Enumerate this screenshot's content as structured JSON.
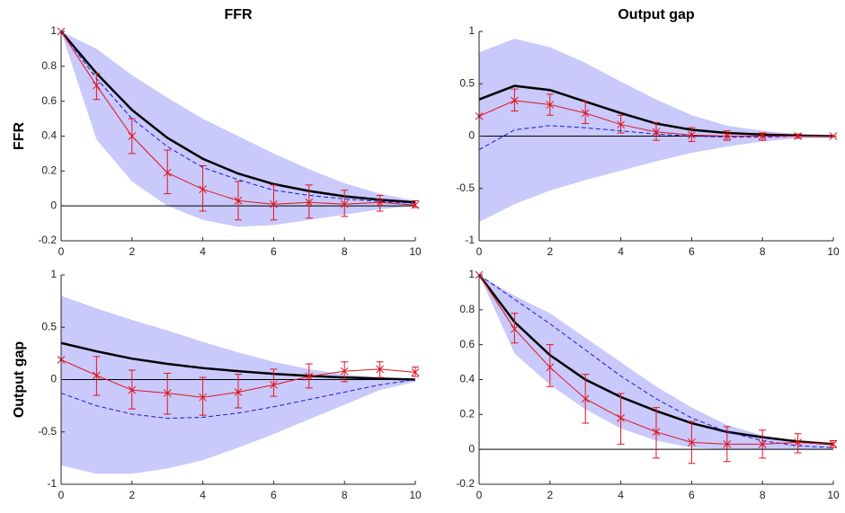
{
  "chart_data": [
    {
      "type": "line",
      "title": "FFR",
      "ylabel": "FFR",
      "x": [
        0,
        1,
        2,
        3,
        4,
        5,
        6,
        7,
        8,
        9,
        10
      ],
      "xlim": [
        0,
        10
      ],
      "xticks": [
        0,
        2,
        4,
        6,
        8,
        10
      ],
      "ylim": [
        -0.2,
        1
      ],
      "yticks": [
        -0.2,
        0,
        0.2,
        0.4,
        0.6,
        0.8,
        1
      ],
      "hline": 0,
      "band": {
        "color": "#c9c9fb",
        "upper": [
          1,
          0.9,
          0.75,
          0.62,
          0.5,
          0.4,
          0.3,
          0.21,
          0.13,
          0.07,
          0.03
        ],
        "lower": [
          1,
          0.38,
          0.14,
          0.0,
          -0.08,
          -0.12,
          -0.11,
          -0.08,
          -0.05,
          -0.02,
          0.0
        ]
      },
      "series": [
        {
          "color": "#000000",
          "width": 2.5,
          "values": [
            1,
            0.76,
            0.55,
            0.39,
            0.27,
            0.185,
            0.125,
            0.085,
            0.055,
            0.035,
            0.02
          ]
        },
        {
          "color": "#1a1ad6",
          "width": 1,
          "dash": "5,3",
          "values": [
            1,
            0.73,
            0.5,
            0.34,
            0.22,
            0.15,
            0.09,
            0.06,
            0.04,
            0.025,
            0.015
          ]
        },
        {
          "color": "#e0141e",
          "width": 1,
          "marker": "x",
          "values": [
            1,
            0.69,
            0.4,
            0.19,
            0.095,
            0.03,
            0.01,
            0.02,
            0.01,
            0.02,
            0.005
          ],
          "lower": [
            null,
            0.61,
            0.3,
            0.07,
            -0.03,
            -0.08,
            -0.08,
            -0.07,
            -0.06,
            -0.03,
            -0.01
          ],
          "upper": [
            null,
            0.76,
            0.5,
            0.32,
            0.23,
            0.14,
            0.12,
            0.12,
            0.09,
            0.06,
            0.03
          ]
        }
      ]
    },
    {
      "type": "line",
      "title": "Output gap",
      "x": [
        0,
        1,
        2,
        3,
        4,
        5,
        6,
        7,
        8,
        9,
        10
      ],
      "xlim": [
        0,
        10
      ],
      "xticks": [
        0,
        2,
        4,
        6,
        8,
        10
      ],
      "ylim": [
        -1,
        1
      ],
      "yticks": [
        -1,
        -0.5,
        0,
        0.5,
        1
      ],
      "hline": 0,
      "band": {
        "color": "#c9c9fb",
        "upper": [
          0.8,
          0.93,
          0.85,
          0.7,
          0.52,
          0.35,
          0.2,
          0.1,
          0.05,
          0.02,
          0.01
        ],
        "lower": [
          -0.82,
          -0.65,
          -0.52,
          -0.42,
          -0.33,
          -0.24,
          -0.16,
          -0.1,
          -0.05,
          -0.02,
          -0.01
        ]
      },
      "series": [
        {
          "color": "#000000",
          "width": 2.5,
          "values": [
            0.35,
            0.48,
            0.44,
            0.33,
            0.22,
            0.12,
            0.06,
            0.03,
            0.015,
            0.005,
            0.0
          ]
        },
        {
          "color": "#1a1ad6",
          "width": 1,
          "dash": "5,3",
          "values": [
            -0.13,
            0.06,
            0.1,
            0.08,
            0.05,
            0.02,
            0.0,
            -0.01,
            -0.01,
            0,
            0
          ]
        },
        {
          "color": "#e0141e",
          "width": 1,
          "marker": "x",
          "values": [
            0.19,
            0.34,
            0.3,
            0.22,
            0.11,
            0.04,
            0.01,
            0.0,
            0.0,
            0.0,
            0.0
          ],
          "lower": [
            null,
            0.24,
            0.2,
            0.12,
            0.03,
            -0.04,
            -0.05,
            -0.04,
            -0.04,
            -0.02,
            0
          ],
          "upper": [
            null,
            0.45,
            0.4,
            0.33,
            0.2,
            0.13,
            0.08,
            0.05,
            0.03,
            0.02,
            0
          ]
        }
      ]
    },
    {
      "type": "line",
      "ylabel": "Output gap",
      "x": [
        0,
        1,
        2,
        3,
        4,
        5,
        6,
        7,
        8,
        9,
        10
      ],
      "xlim": [
        0,
        10
      ],
      "xticks": [
        0,
        2,
        4,
        6,
        8,
        10
      ],
      "ylim": [
        -1,
        1
      ],
      "yticks": [
        -1,
        -0.5,
        0,
        0.5,
        1
      ],
      "hline": 0,
      "band": {
        "color": "#c9c9fb",
        "upper": [
          0.8,
          0.68,
          0.57,
          0.47,
          0.36,
          0.26,
          0.17,
          0.1,
          0.05,
          0.02,
          0.0
        ],
        "lower": [
          -0.82,
          -0.9,
          -0.9,
          -0.85,
          -0.77,
          -0.65,
          -0.52,
          -0.38,
          -0.24,
          -0.1,
          -0.02
        ]
      },
      "series": [
        {
          "color": "#000000",
          "width": 2.5,
          "values": [
            0.35,
            0.27,
            0.2,
            0.15,
            0.11,
            0.08,
            0.055,
            0.035,
            0.02,
            0.01,
            0.0
          ]
        },
        {
          "color": "#1a1ad6",
          "width": 1,
          "dash": "5,3",
          "values": [
            -0.13,
            -0.25,
            -0.33,
            -0.37,
            -0.36,
            -0.32,
            -0.26,
            -0.19,
            -0.12,
            -0.05,
            0.0
          ]
        },
        {
          "color": "#e0141e",
          "width": 1,
          "marker": "x",
          "values": [
            0.19,
            0.04,
            -0.1,
            -0.13,
            -0.17,
            -0.12,
            -0.05,
            0.03,
            0.08,
            0.1,
            0.07
          ],
          "lower": [
            null,
            -0.15,
            -0.28,
            -0.33,
            -0.34,
            -0.27,
            -0.16,
            -0.08,
            -0.02,
            0.02,
            0.03
          ],
          "upper": [
            null,
            0.22,
            0.09,
            0.06,
            0.02,
            0.05,
            0.1,
            0.15,
            0.17,
            0.17,
            0.12
          ]
        }
      ]
    },
    {
      "type": "line",
      "x": [
        0,
        1,
        2,
        3,
        4,
        5,
        6,
        7,
        8,
        9,
        10
      ],
      "xlim": [
        0,
        10
      ],
      "xticks": [
        0,
        2,
        4,
        6,
        8,
        10
      ],
      "ylim": [
        -0.2,
        1
      ],
      "yticks": [
        -0.2,
        0,
        0.2,
        0.4,
        0.6,
        0.8,
        1
      ],
      "hline": 0,
      "band": {
        "color": "#c9c9fb",
        "upper": [
          1,
          0.88,
          0.78,
          0.64,
          0.5,
          0.36,
          0.24,
          0.14,
          0.08,
          0.04,
          0.02
        ],
        "lower": [
          1,
          0.55,
          0.37,
          0.23,
          0.12,
          0.05,
          0.01,
          0.0,
          0.0,
          0.0,
          0.0
        ]
      },
      "series": [
        {
          "color": "#000000",
          "width": 2.5,
          "values": [
            1,
            0.73,
            0.54,
            0.4,
            0.3,
            0.22,
            0.15,
            0.1,
            0.07,
            0.045,
            0.03
          ]
        },
        {
          "color": "#1a1ad6",
          "width": 1,
          "dash": "5,3",
          "values": [
            1,
            0.86,
            0.72,
            0.57,
            0.42,
            0.29,
            0.18,
            0.1,
            0.05,
            0.02,
            0.01
          ]
        },
        {
          "color": "#e0141e",
          "width": 1,
          "marker": "x",
          "values": [
            1,
            0.69,
            0.47,
            0.29,
            0.18,
            0.1,
            0.04,
            0.03,
            0.03,
            0.04,
            0.03
          ],
          "lower": [
            null,
            0.61,
            0.36,
            0.15,
            0.03,
            -0.05,
            -0.08,
            -0.07,
            -0.05,
            -0.02,
            0.01
          ],
          "upper": [
            null,
            0.78,
            0.6,
            0.43,
            0.32,
            0.24,
            0.16,
            0.13,
            0.11,
            0.09,
            0.05
          ]
        }
      ]
    }
  ]
}
